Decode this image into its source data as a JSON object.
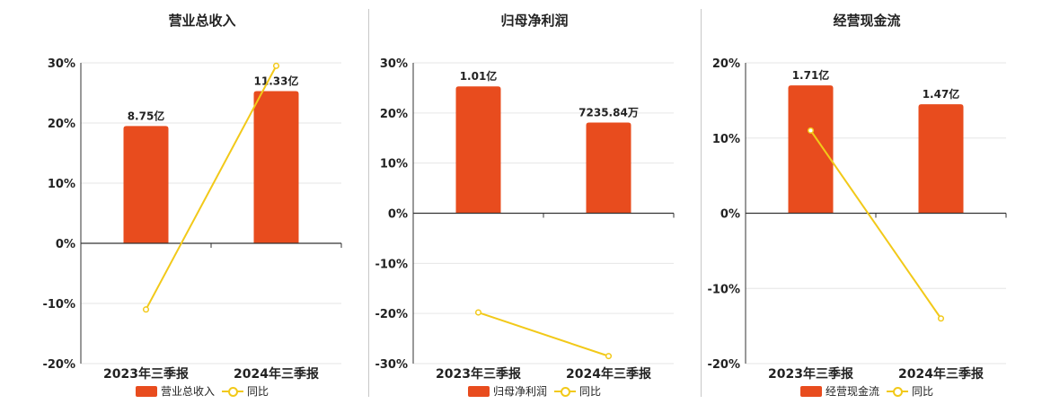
{
  "colors": {
    "bar": "#e84c1e",
    "line": "#f2c919",
    "axis": "#333333",
    "grid": "#e6e6e6"
  },
  "legend_line_label": "同比",
  "chart_data": [
    {
      "type": "bar",
      "title": "营业总收入",
      "categories": [
        "2023年三季报",
        "2024年三季报"
      ],
      "series": [
        {
          "name": "营业总收入",
          "type": "bar",
          "values": [
            19.5,
            25.3
          ],
          "labels": [
            "8.75亿",
            "11.33亿"
          ]
        },
        {
          "name": "同比",
          "type": "line",
          "values": [
            -11.0,
            29.5
          ]
        }
      ],
      "ylim": [
        -20,
        30
      ],
      "yticks": [
        30,
        20,
        10,
        0,
        -10,
        -20
      ],
      "ytick_labels": [
        "30%",
        "20%",
        "10%",
        "0%",
        "-10%",
        "-20%"
      ],
      "grid": true,
      "legend": "bottom"
    },
    {
      "type": "bar",
      "title": "归母净利润",
      "categories": [
        "2023年三季报",
        "2024年三季报"
      ],
      "series": [
        {
          "name": "归母净利润",
          "type": "bar",
          "values": [
            25.3,
            18.1
          ],
          "labels": [
            "1.01亿",
            "7235.84万"
          ]
        },
        {
          "name": "同比",
          "type": "line",
          "values": [
            -19.8,
            -28.5
          ]
        }
      ],
      "ylim": [
        -30,
        30
      ],
      "yticks": [
        30,
        20,
        10,
        0,
        -10,
        -20,
        -30
      ],
      "ytick_labels": [
        "30%",
        "20%",
        "10%",
        "0%",
        "-10%",
        "-20%",
        "-30%"
      ],
      "grid": true,
      "legend": "bottom"
    },
    {
      "type": "bar",
      "title": "经营现金流",
      "categories": [
        "2023年三季报",
        "2024年三季报"
      ],
      "series": [
        {
          "name": "经营现金流",
          "type": "bar",
          "values": [
            17.0,
            14.5
          ],
          "labels": [
            "1.71亿",
            "1.47亿"
          ]
        },
        {
          "name": "同比",
          "type": "line",
          "values": [
            11.0,
            -14.0
          ]
        }
      ],
      "ylim": [
        -20,
        20
      ],
      "yticks": [
        20,
        10,
        0,
        -10,
        -20
      ],
      "ytick_labels": [
        "20%",
        "10%",
        "0%",
        "-10%",
        "-20%"
      ],
      "grid": true,
      "legend": "bottom"
    }
  ]
}
